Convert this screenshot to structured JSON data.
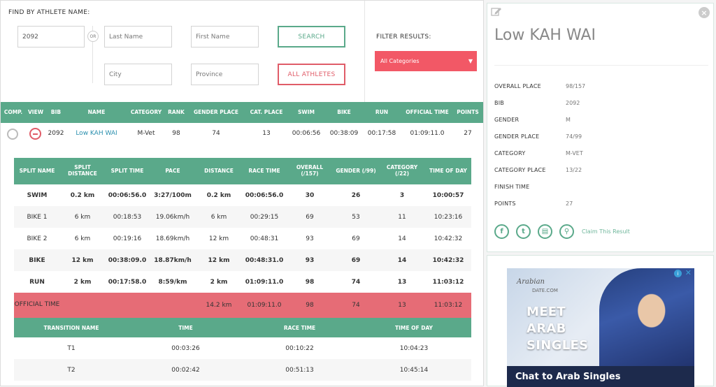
{
  "search": {
    "label": "FIND BY ATHLETE NAME:",
    "bib_value": "2092",
    "or_label": "OR",
    "last_name_placeholder": "Last Name",
    "first_name_placeholder": "First Name",
    "city_placeholder": "City",
    "province_placeholder": "Province",
    "search_button": "SEARCH",
    "all_athletes_button": "ALL ATHLETES",
    "filter_label": "FILTER RESULTS:",
    "filter_selected": "All Categories"
  },
  "results_header": [
    "COMP.",
    "VIEW",
    "BIB",
    "NAME",
    "CATEGORY",
    "RANK",
    "GENDER PLACE",
    "CAT. PLACE",
    "SWIM",
    "BIKE",
    "RUN",
    "OFFICIAL TIME",
    "POINTS"
  ],
  "result_row": {
    "bib": "2092",
    "name": "Low KAH WAI",
    "category": "M-Vet",
    "rank": "98",
    "gender_place": "74",
    "cat_place": "13",
    "swim": "00:06:56",
    "bike": "00:38:09",
    "run": "00:17:58",
    "official_time": "01:09:11.0",
    "points": "27"
  },
  "splits_header": [
    "SPLIT NAME",
    "SPLIT DISTANCE",
    "SPLIT TIME",
    "PACE",
    "DISTANCE",
    "RACE TIME",
    "OVERALL (/157)",
    "GENDER (/99)",
    "CATEGORY (/22)",
    "TIME OF DAY"
  ],
  "splits": [
    {
      "name": "SWIM",
      "split_distance": "0.2 km",
      "split_time": "00:06:56.0",
      "pace": "3:27/100m",
      "distance": "0.2 km",
      "race_time": "00:06:56.0",
      "overall": "30",
      "gender": "26",
      "category": "3",
      "time_of_day": "10:00:57"
    },
    {
      "name": "BIKE 1",
      "split_distance": "6 km",
      "split_time": "00:18:53",
      "pace": "19.06km/h",
      "distance": "6 km",
      "race_time": "00:29:15",
      "overall": "69",
      "gender": "53",
      "category": "11",
      "time_of_day": "10:23:16"
    },
    {
      "name": "BIKE 2",
      "split_distance": "6 km",
      "split_time": "00:19:16",
      "pace": "18.69km/h",
      "distance": "12 km",
      "race_time": "00:48:31",
      "overall": "93",
      "gender": "69",
      "category": "14",
      "time_of_day": "10:42:32"
    },
    {
      "name": "BIKE",
      "split_distance": "12 km",
      "split_time": "00:38:09.0",
      "pace": "18.87km/h",
      "distance": "12 km",
      "race_time": "00:48:31.0",
      "overall": "93",
      "gender": "69",
      "category": "14",
      "time_of_day": "10:42:32"
    },
    {
      "name": "RUN",
      "split_distance": "2 km",
      "split_time": "00:17:58.0",
      "pace": "8:59/km",
      "distance": "2 km",
      "race_time": "01:09:11.0",
      "overall": "98",
      "gender": "74",
      "category": "13",
      "time_of_day": "11:03:12"
    }
  ],
  "official": {
    "name": "OFFICIAL TIME",
    "distance": "14.2 km",
    "race_time": "01:09:11.0",
    "overall": "98",
    "gender": "74",
    "category": "13",
    "time_of_day": "11:03:12"
  },
  "transitions_header": [
    "TRANSITION NAME",
    "TIME",
    "RACE TIME",
    "TIME OF DAY"
  ],
  "transitions": [
    {
      "name": "T1",
      "time": "00:03:26",
      "race_time": "00:10:22",
      "time_of_day": "10:04:23"
    },
    {
      "name": "T2",
      "time": "00:02:42",
      "race_time": "00:51:13",
      "time_of_day": "10:45:14"
    }
  ],
  "athlete_card": {
    "title": "Low KAH WAI",
    "details": [
      {
        "label": "OVERALL PLACE",
        "value": "98/157"
      },
      {
        "label": "BIB",
        "value": "2092"
      },
      {
        "label": "GENDER",
        "value": "M"
      },
      {
        "label": "GENDER PLACE",
        "value": "74/99"
      },
      {
        "label": "CATEGORY",
        "value": "M-VET"
      },
      {
        "label": "CATEGORY PLACE",
        "value": "13/22"
      },
      {
        "label": "FINISH TIME",
        "value": ""
      },
      {
        "label": "POINTS",
        "value": "27"
      }
    ],
    "social_icons": [
      "facebook-icon",
      "twitter-icon",
      "document-icon",
      "search-icon"
    ],
    "social_glyphs": [
      "f",
      "t",
      "▤",
      "⚲"
    ],
    "claim_link": "Claim This Result"
  },
  "ad": {
    "logo": "Arabian",
    "logo_sub": "DATE.COM",
    "line1": "MEET",
    "line2": "ARAB",
    "line3": "SINGLES",
    "footer": "Chat to Arab Singles",
    "info": "i",
    "close": "✕"
  },
  "colors": {
    "green": "#5aa98a",
    "red": "#e05c68",
    "official_row": "#e66c76",
    "link": "#2a8fae"
  }
}
